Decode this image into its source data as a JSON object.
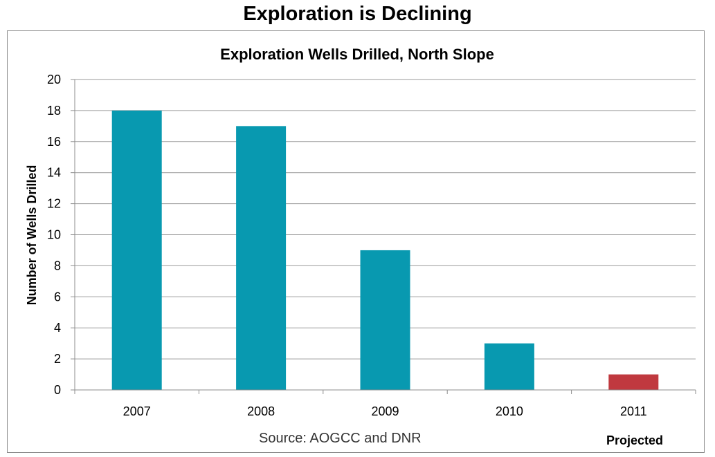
{
  "page_title": "Exploration is Declining",
  "chart_data": {
    "type": "bar",
    "title": "Exploration Wells Drilled, North Slope",
    "xlabel": "",
    "ylabel": "Number of Wells Drilled",
    "categories": [
      "2007",
      "2008",
      "2009",
      "2010",
      "2011"
    ],
    "values": [
      18,
      17,
      9,
      3,
      1
    ],
    "bar_colors": [
      "#0899b0",
      "#0899b0",
      "#0899b0",
      "#0899b0",
      "#c0393f"
    ],
    "ylim": [
      0,
      20
    ],
    "yticks": [
      0,
      2,
      4,
      6,
      8,
      10,
      12,
      14,
      16,
      18,
      20
    ],
    "grid": true,
    "source": "Source: AOGCC and DNR",
    "annotation": "Projected"
  }
}
